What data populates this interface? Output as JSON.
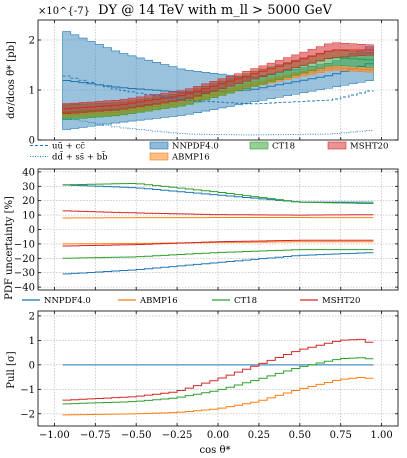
{
  "chart_data": [
    {
      "type": "line",
      "panel": "top",
      "title": "DY @ 14 TeV with m_ll > 5000 GeV",
      "scale_label": "×10^{-7}",
      "xlabel": "",
      "ylabel": "dσ/dcos θ* [pb]",
      "xlim": [
        -1.1,
        1.1
      ],
      "ylim": [
        0,
        2.4e-07
      ],
      "xticks": [
        -1.0,
        -0.75,
        -0.5,
        -0.25,
        0.0,
        0.25,
        0.5,
        0.75,
        1.0
      ],
      "yticks": [
        0,
        1e-07,
        2e-07
      ],
      "ytick_labels": [
        "0",
        "1",
        "2"
      ],
      "grid": true,
      "legend_position": "bottom",
      "bands": [
        {
          "name": "NNPDF4.0",
          "color": "#1f77b4"
        },
        {
          "name": "CT18",
          "color": "#2ca02c"
        },
        {
          "name": "MSHT20",
          "color": "#d62728"
        },
        {
          "name": "ABMP16",
          "color": "#ff7f0e"
        }
      ],
      "extra_series": [
        {
          "name": "uū + cc̄",
          "style": "dashed",
          "color": "#1f77b4"
        },
        {
          "name": "dd̄ + ss̄ + bb̄",
          "style": "dotted",
          "color": "#1f77b4"
        }
      ],
      "legend_order": [
        "uū + cc̄",
        "NNPDF4.0",
        "CT18",
        "MSHT20",
        "dd̄ + ss̄ + bb̄",
        "ABMP16"
      ],
      "note": "binned cos θ* distributions, x from -0.95 to 0.95; central ± band"
    },
    {
      "type": "line",
      "panel": "middle",
      "xlabel": "",
      "ylabel": "PDF uncertainty [%]",
      "xlim": [
        -1.1,
        1.1
      ],
      "ylim": [
        -42,
        42
      ],
      "yticks": [
        -40,
        -30,
        -20,
        -10,
        0,
        10,
        20,
        30,
        40
      ],
      "grid": true,
      "series": [
        {
          "name": "NNPDF4.0",
          "color": "#1f77b4",
          "x": [
            -0.95,
            -0.5,
            0,
            0.5,
            0.95
          ],
          "upper": [
            31,
            29,
            24,
            19,
            19
          ],
          "lower": [
            -31,
            -28,
            -23,
            -18,
            -16
          ]
        },
        {
          "name": "ABMP16",
          "color": "#ff7f0e",
          "x": [
            -0.95,
            -0.5,
            0,
            0.5,
            0.95
          ],
          "upper": [
            8,
            8.2,
            8.3,
            8.3,
            8.2
          ],
          "lower": [
            -10,
            -9.7,
            -9,
            -8.5,
            -8.5
          ]
        },
        {
          "name": "CT18",
          "color": "#2ca02c",
          "x": [
            -0.95,
            -0.5,
            0,
            0.5,
            0.95
          ],
          "upper": [
            31,
            32,
            26,
            19,
            18
          ],
          "lower": [
            -20,
            -19,
            -16,
            -14,
            -14
          ]
        },
        {
          "name": "MSHT20",
          "color": "#d62728",
          "x": [
            -0.95,
            -0.5,
            0,
            0.5,
            0.95
          ],
          "upper": [
            13,
            11.5,
            10.3,
            10,
            10.3
          ],
          "lower": [
            -11.5,
            -10.5,
            -8.5,
            -7.5,
            -7.5
          ]
        }
      ],
      "legend_position": "bottom"
    },
    {
      "type": "line",
      "panel": "bottom",
      "xlabel": "cos θ*",
      "ylabel": "Pull [σ]",
      "xlim": [
        -1.1,
        1.1
      ],
      "ylim": [
        -2.5,
        2.2
      ],
      "xticks": [
        -1.0,
        -0.75,
        -0.5,
        -0.25,
        0.0,
        0.25,
        0.5,
        0.75,
        1.0
      ],
      "xtick_labels": [
        "−1.00",
        "−0.75",
        "−0.50",
        "−0.25",
        "0.00",
        "0.25",
        "0.50",
        "0.75",
        "1.00"
      ],
      "yticks": [
        -2,
        -1,
        0,
        1,
        2
      ],
      "grid": true,
      "series": [
        {
          "name": "NNPDF4.0",
          "color": "#1f77b4",
          "x": [
            -0.95,
            0.95
          ],
          "y": [
            0,
            0
          ]
        },
        {
          "name": "ABMP16",
          "color": "#ff7f0e",
          "x": [
            -0.95,
            -0.5,
            -0.25,
            0,
            0.25,
            0.5,
            0.75,
            0.9,
            0.95
          ],
          "y": [
            -2.05,
            -2.0,
            -1.95,
            -1.8,
            -1.5,
            -1.0,
            -0.6,
            -0.5,
            -0.6
          ]
        },
        {
          "name": "CT18",
          "color": "#2ca02c",
          "x": [
            -0.95,
            -0.5,
            -0.25,
            0,
            0.25,
            0.5,
            0.75,
            0.9,
            0.95
          ],
          "y": [
            -1.6,
            -1.5,
            -1.35,
            -1.05,
            -0.6,
            -0.1,
            0.25,
            0.3,
            0.2
          ]
        },
        {
          "name": "MSHT20",
          "color": "#d62728",
          "x": [
            -0.95,
            -0.5,
            -0.25,
            0,
            0.25,
            0.5,
            0.75,
            0.9,
            0.95
          ],
          "y": [
            -1.45,
            -1.3,
            -1.1,
            -0.6,
            0.0,
            0.6,
            1.0,
            1.05,
            0.8
          ]
        }
      ]
    }
  ]
}
